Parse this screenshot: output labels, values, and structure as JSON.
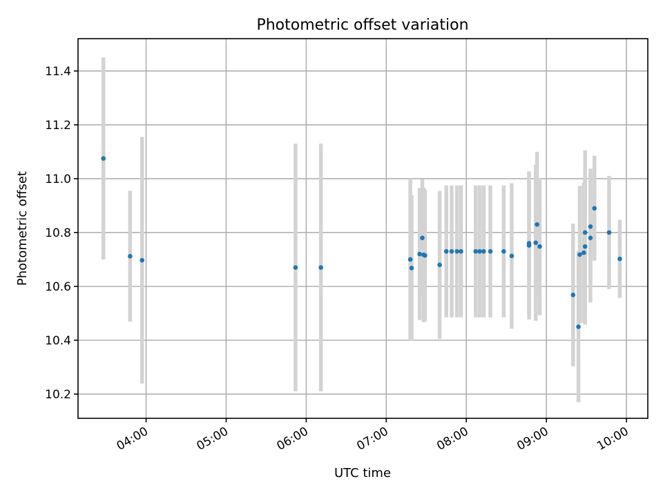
{
  "chart_data": {
    "type": "scatter",
    "title": "Photometric offset variation",
    "xlabel": "UTC time",
    "ylabel": "Photometric offset",
    "x_ticks": [
      "04:00",
      "05:00",
      "06:00",
      "07:00",
      "08:00",
      "09:00",
      "10:00"
    ],
    "y_ticks": [
      "10.2",
      "10.4",
      "10.6",
      "10.8",
      "11.0",
      "11.2",
      "11.4"
    ],
    "xlim": [
      "03:09",
      "10:16"
    ],
    "ylim": [
      10.11,
      11.52
    ],
    "grid": true,
    "colors": {
      "point": "#1f77b4",
      "errorbar": "#d3d3d3"
    },
    "points": [
      {
        "x": "03:28",
        "y": 11.075,
        "err": 0.375
      },
      {
        "x": "03:48",
        "y": 10.712,
        "err": 0.243
      },
      {
        "x": "03:57",
        "y": 10.697,
        "err": 0.458
      },
      {
        "x": "05:52",
        "y": 10.67,
        "err": 0.46
      },
      {
        "x": "06:11",
        "y": 10.67,
        "err": 0.46
      },
      {
        "x": "07:18",
        "y": 10.7,
        "err": 0.3
      },
      {
        "x": "07:19",
        "y": 10.668,
        "err": 0.27
      },
      {
        "x": "07:25",
        "y": 10.72,
        "err": 0.245
      },
      {
        "x": "07:27",
        "y": 10.78,
        "err": 0.218
      },
      {
        "x": "07:28",
        "y": 10.717,
        "err": 0.25
      },
      {
        "x": "07:29",
        "y": 10.715,
        "err": 0.245
      },
      {
        "x": "07:40",
        "y": 10.68,
        "err": 0.275
      },
      {
        "x": "07:45",
        "y": 10.73,
        "err": 0.245
      },
      {
        "x": "07:49",
        "y": 10.73,
        "err": 0.245
      },
      {
        "x": "07:53",
        "y": 10.73,
        "err": 0.245
      },
      {
        "x": "07:56",
        "y": 10.73,
        "err": 0.245
      },
      {
        "x": "08:07",
        "y": 10.73,
        "err": 0.245
      },
      {
        "x": "08:10",
        "y": 10.73,
        "err": 0.245
      },
      {
        "x": "08:13",
        "y": 10.73,
        "err": 0.245
      },
      {
        "x": "08:18",
        "y": 10.73,
        "err": 0.245
      },
      {
        "x": "08:28",
        "y": 10.73,
        "err": 0.245
      },
      {
        "x": "08:34",
        "y": 10.713,
        "err": 0.27
      },
      {
        "x": "08:47",
        "y": 10.752,
        "err": 0.275
      },
      {
        "x": "08:47",
        "y": 10.76,
        "err": 0.265
      },
      {
        "x": "08:52",
        "y": 10.762,
        "err": 0.29
      },
      {
        "x": "08:53",
        "y": 10.83,
        "err": 0.27
      },
      {
        "x": "08:55",
        "y": 10.748,
        "err": 0.255
      },
      {
        "x": "09:20",
        "y": 10.568,
        "err": 0.265
      },
      {
        "x": "09:24",
        "y": 10.45,
        "err": 0.28
      },
      {
        "x": "09:25",
        "y": 10.718,
        "err": 0.255
      },
      {
        "x": "09:28",
        "y": 10.725,
        "err": 0.26
      },
      {
        "x": "09:29",
        "y": 10.748,
        "err": 0.29
      },
      {
        "x": "09:29",
        "y": 10.8,
        "err": 0.305
      },
      {
        "x": "09:33",
        "y": 10.78,
        "err": 0.24
      },
      {
        "x": "09:33",
        "y": 10.822,
        "err": 0.215
      },
      {
        "x": "09:36",
        "y": 10.89,
        "err": 0.195
      },
      {
        "x": "09:47",
        "y": 10.8,
        "err": 0.21
      },
      {
        "x": "09:55",
        "y": 10.702,
        "err": 0.145
      }
    ]
  }
}
